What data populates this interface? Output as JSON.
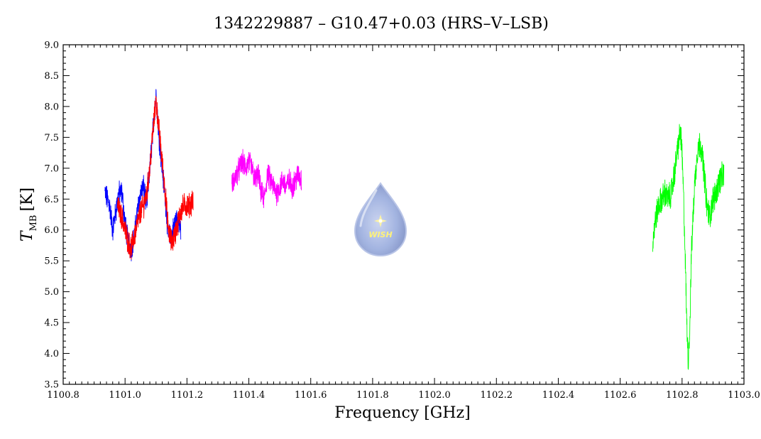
{
  "chart_data": {
    "type": "line",
    "title": "1342229887 – G10.47+0.03 (HRS–V–LSB)",
    "xlabel": "Frequency [GHz]",
    "ylabel_main": "T",
    "ylabel_sub": "MB",
    "ylabel_unit": "[K]",
    "xlim": [
      1100.8,
      1103.0
    ],
    "ylim": [
      3.5,
      9.0
    ],
    "xticks": [
      "1100.8",
      "1101.0",
      "1101.2",
      "1101.4",
      "1101.6",
      "1101.8",
      "1102.0",
      "1102.2",
      "1102.4",
      "1102.6",
      "1102.8",
      "1103.0"
    ],
    "yticks": [
      "3.5",
      "4.0",
      "4.5",
      "5.0",
      "5.5",
      "6.0",
      "6.5",
      "7.0",
      "7.5",
      "8.0",
      "8.5",
      "9.0"
    ],
    "grid": false,
    "logo": {
      "text": "WISH"
    },
    "series": [
      {
        "color": "#0000ff",
        "x_range": [
          1100.935,
          1101.18
        ],
        "x": [
          1100.935,
          1100.95,
          1100.96,
          1100.97,
          1100.98,
          1100.99,
          1101.0,
          1101.01,
          1101.02,
          1101.03,
          1101.04,
          1101.05,
          1101.06,
          1101.07,
          1101.08,
          1101.09,
          1101.1,
          1101.11,
          1101.12,
          1101.13,
          1101.14,
          1101.15,
          1101.16,
          1101.17,
          1101.18
        ],
        "y": [
          6.6,
          6.4,
          6.0,
          6.3,
          6.6,
          6.6,
          6.1,
          5.8,
          5.7,
          5.9,
          6.3,
          6.6,
          6.7,
          6.4,
          7.0,
          7.6,
          8.2,
          7.5,
          7.0,
          6.5,
          5.9,
          5.9,
          6.1,
          6.2,
          6.0
        ]
      },
      {
        "color": "#ff0000",
        "x_range": [
          1100.975,
          1101.22
        ],
        "x": [
          1100.975,
          1100.99,
          1101.0,
          1101.01,
          1101.02,
          1101.03,
          1101.04,
          1101.05,
          1101.06,
          1101.07,
          1101.08,
          1101.09,
          1101.1,
          1101.11,
          1101.12,
          1101.13,
          1101.14,
          1101.15,
          1101.16,
          1101.17,
          1101.18,
          1101.19,
          1101.2,
          1101.21,
          1101.22
        ],
        "y": [
          6.4,
          6.2,
          6.0,
          5.8,
          5.7,
          5.9,
          6.1,
          6.3,
          6.4,
          6.6,
          7.0,
          7.6,
          8.1,
          7.6,
          7.1,
          6.6,
          6.0,
          5.8,
          5.9,
          6.1,
          6.3,
          6.4,
          6.4,
          6.4,
          6.5
        ]
      },
      {
        "color": "#ff00ff",
        "x_range": [
          1101.345,
          1101.57
        ],
        "x": [
          1101.345,
          1101.36,
          1101.37,
          1101.38,
          1101.39,
          1101.4,
          1101.41,
          1101.42,
          1101.43,
          1101.44,
          1101.45,
          1101.46,
          1101.47,
          1101.48,
          1101.49,
          1101.5,
          1101.51,
          1101.52,
          1101.53,
          1101.54,
          1101.55,
          1101.56,
          1101.57
        ],
        "y": [
          6.7,
          6.9,
          7.0,
          7.1,
          7.0,
          7.1,
          7.0,
          6.8,
          6.9,
          6.6,
          6.5,
          6.9,
          6.8,
          6.7,
          6.6,
          6.7,
          6.8,
          6.7,
          6.8,
          6.7,
          6.8,
          6.9,
          6.8
        ]
      },
      {
        "color": "#00ff00",
        "x_range": [
          1102.705,
          1102.935
        ],
        "x": [
          1102.705,
          1102.715,
          1102.725,
          1102.735,
          1102.745,
          1102.755,
          1102.765,
          1102.775,
          1102.785,
          1102.795,
          1102.8,
          1102.805,
          1102.81,
          1102.815,
          1102.82,
          1102.825,
          1102.83,
          1102.84,
          1102.85,
          1102.86,
          1102.87,
          1102.88,
          1102.89,
          1102.9,
          1102.91,
          1102.92,
          1102.935
        ],
        "y": [
          5.8,
          6.2,
          6.4,
          6.5,
          6.6,
          6.5,
          6.6,
          6.9,
          7.3,
          7.6,
          7.2,
          6.5,
          5.6,
          4.5,
          3.9,
          4.4,
          5.6,
          6.7,
          7.3,
          7.4,
          7.0,
          6.4,
          6.2,
          6.5,
          6.6,
          6.8,
          6.9
        ]
      }
    ]
  }
}
